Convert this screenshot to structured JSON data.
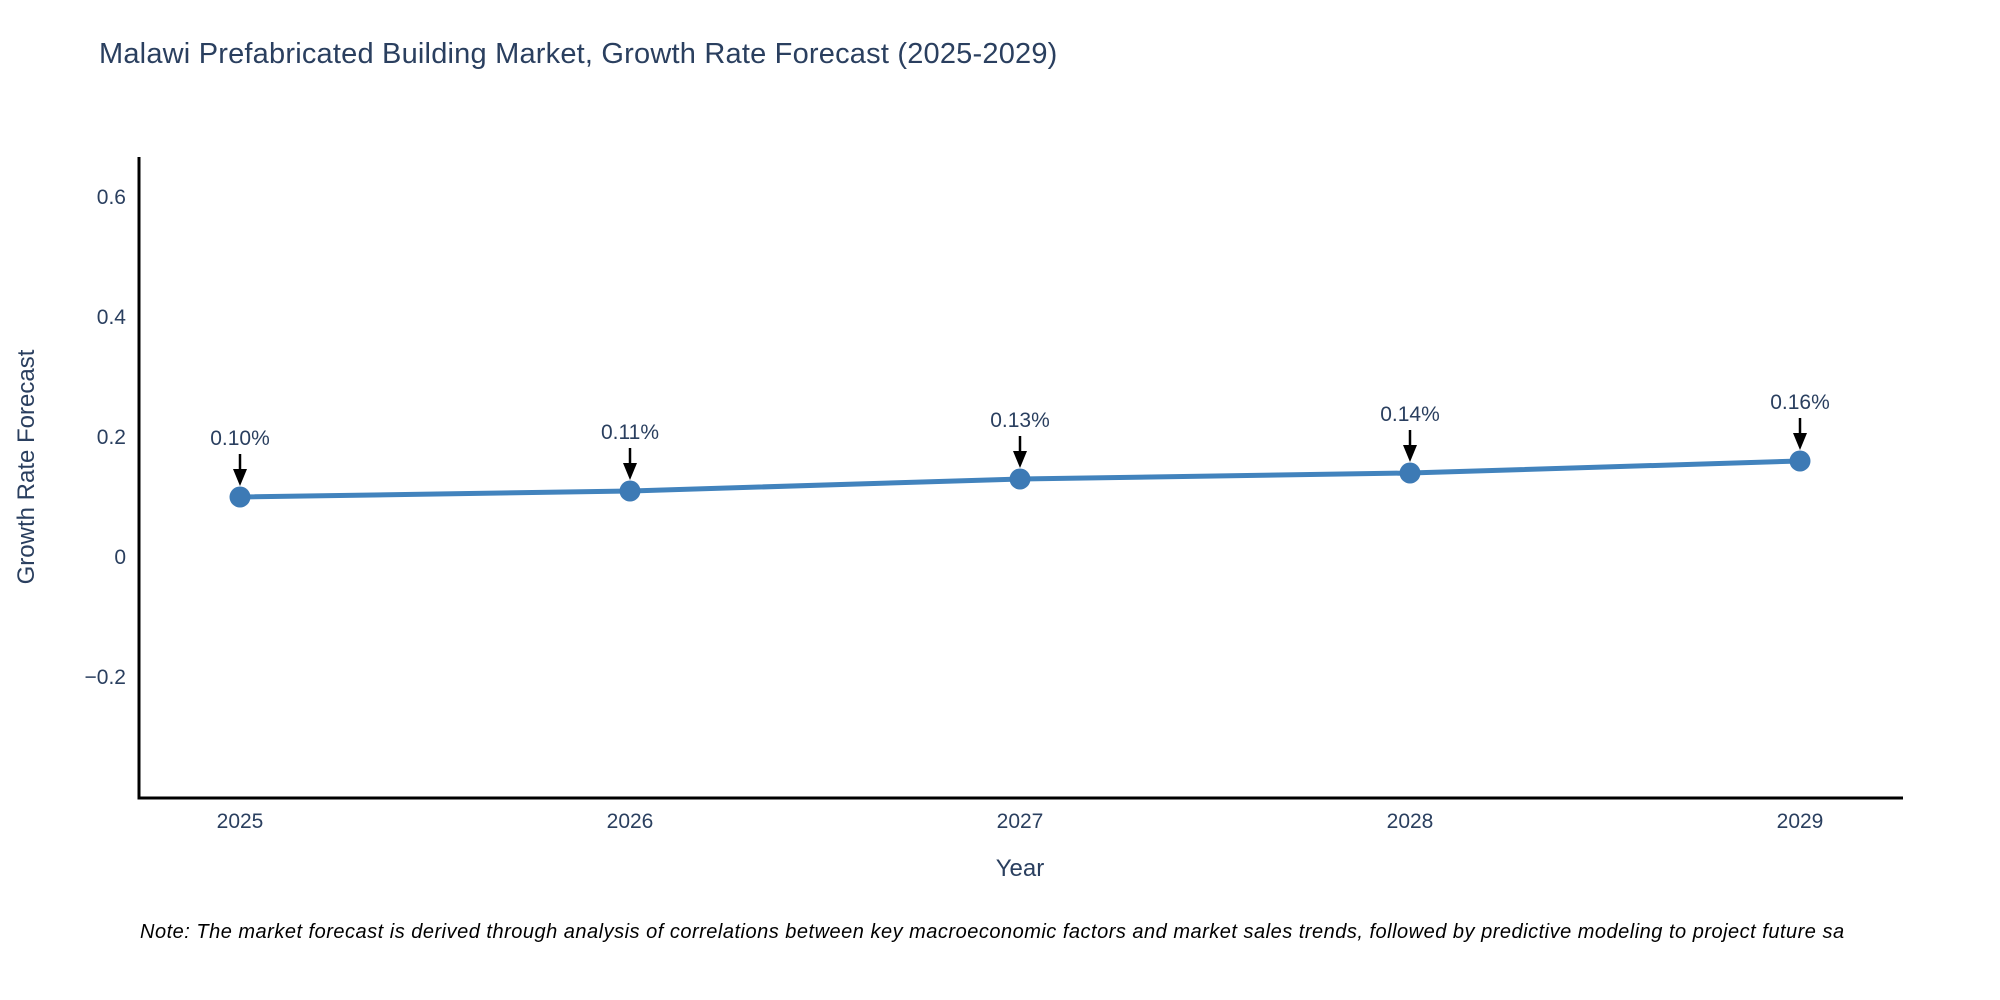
{
  "chart_data": {
    "type": "line",
    "title": "Malawi Prefabricated Building Market, Growth Rate Forecast (2025-2029)",
    "xlabel": "Year",
    "ylabel": "Growth Rate Forecast",
    "x": [
      2025,
      2026,
      2027,
      2028,
      2029
    ],
    "series": [
      {
        "name": "Growth Rate Forecast",
        "values": [
          0.1,
          0.11,
          0.13,
          0.14,
          0.16
        ],
        "point_labels": [
          "0.10%",
          "0.11%",
          "0.13%",
          "0.14%",
          "0.16%"
        ]
      }
    ],
    "yticks": [
      0.6,
      0.4,
      0.2,
      0,
      -0.2
    ],
    "ylim": [
      -0.4,
      0.665
    ],
    "xlim": [
      2024.74,
      2029.26
    ],
    "grid": false,
    "legend_position": "none",
    "annotations_have_arrows": true,
    "colors": {
      "line": "#4283bd",
      "marker": "#3d7ab5",
      "axis_line": "#000000",
      "text": "#2a3f5f",
      "arrow": "#000000",
      "note_text": "#000000",
      "background": "#ffffff"
    },
    "note": "Note: The market forecast is derived through analysis of correlations between key macroeconomic factors and market sales trends, followed by predictive modeling to project future sa"
  }
}
